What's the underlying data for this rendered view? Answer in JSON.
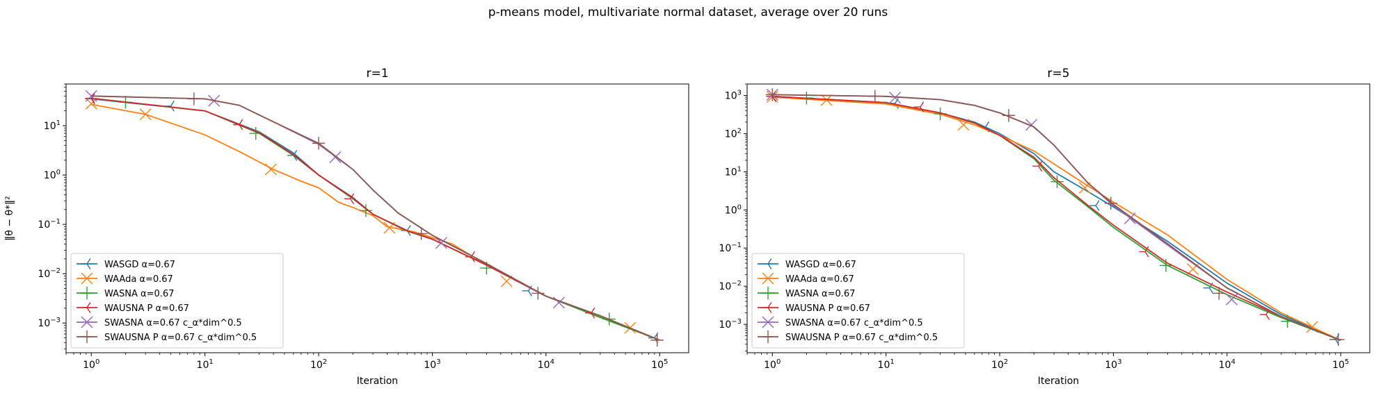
{
  "figure": {
    "suptitle": "p-means model, multivariate normal dataset, average over 20 runs"
  },
  "chart_data": [
    {
      "type": "line",
      "title": "r=1",
      "xlabel": "Iteration",
      "ylabel": "‖θ − θ*‖²",
      "xscale": "log",
      "yscale": "log",
      "xlim": [
        0.6,
        180000
      ],
      "ylim": [
        0.00025,
        70
      ],
      "x_ticks": [
        {
          "v": 1,
          "e": "0"
        },
        {
          "v": 10,
          "e": "1"
        },
        {
          "v": 100,
          "e": "2"
        },
        {
          "v": 1000,
          "e": "3"
        },
        {
          "v": 10000,
          "e": "4"
        },
        {
          "v": 100000,
          "e": "5"
        }
      ],
      "y_ticks": [
        {
          "v": 0.001,
          "e": "−3"
        },
        {
          "v": 0.01,
          "e": "−2"
        },
        {
          "v": 0.1,
          "e": "−1"
        },
        {
          "v": 1,
          "e": "0"
        },
        {
          "v": 10,
          "e": "1"
        }
      ],
      "legend_position": "lower-left",
      "grid": false,
      "series": [
        {
          "name": "WASGD α=0.67",
          "color": "#1f77b4",
          "marker": "tri_left",
          "points": [
            [
              1,
              35
            ],
            [
              10,
              20
            ],
            [
              30,
              7.5
            ],
            [
              60,
              2.8
            ],
            [
              100,
              1.0
            ],
            [
              200,
              0.35
            ],
            [
              300,
              0.16
            ],
            [
              600,
              0.075
            ],
            [
              1000,
              0.05
            ],
            [
              3000,
              0.015
            ],
            [
              10000,
              0.0035
            ],
            [
              30000,
              0.0014
            ],
            [
              100000,
              0.00045
            ]
          ],
          "markers": [
            [
              1,
              35
            ],
            [
              5,
              25
            ],
            [
              60,
              2.5
            ],
            [
              600,
              0.075
            ],
            [
              7000,
              0.0045
            ],
            [
              90000,
              0.0005
            ]
          ]
        },
        {
          "name": "WAAda α=0.67",
          "color": "#ff7f0e",
          "marker": "x",
          "points": [
            [
              1,
              27
            ],
            [
              3,
              17
            ],
            [
              10,
              6.5
            ],
            [
              20,
              3.0
            ],
            [
              40,
              1.3
            ],
            [
              70,
              0.75
            ],
            [
              100,
              0.55
            ],
            [
              150,
              0.28
            ],
            [
              200,
              0.22
            ],
            [
              300,
              0.15
            ],
            [
              400,
              0.09
            ],
            [
              700,
              0.07
            ],
            [
              1500,
              0.04
            ],
            [
              3000,
              0.015
            ],
            [
              10000,
              0.0035
            ],
            [
              30000,
              0.0013
            ],
            [
              100000,
              0.00045
            ]
          ],
          "markers": [
            [
              1,
              28
            ],
            [
              3,
              17
            ],
            [
              38,
              1.3
            ],
            [
              420,
              0.085
            ],
            [
              4500,
              0.007
            ],
            [
              55000,
              0.0008
            ]
          ]
        },
        {
          "name": "WASNA α=0.67",
          "color": "#2ca02c",
          "marker": "+",
          "points": [
            [
              1,
              36
            ],
            [
              10,
              20
            ],
            [
              30,
              7.0
            ],
            [
              60,
              2.5
            ],
            [
              100,
              1.0
            ],
            [
              200,
              0.33
            ],
            [
              300,
              0.16
            ],
            [
              600,
              0.073
            ],
            [
              1000,
              0.05
            ],
            [
              3000,
              0.015
            ],
            [
              10000,
              0.0035
            ],
            [
              30000,
              0.0013
            ],
            [
              100000,
              0.00045
            ]
          ],
          "markers": [
            [
              2,
              30
            ],
            [
              28,
              7.0
            ],
            [
              260,
              0.19
            ],
            [
              3000,
              0.013
            ],
            [
              36000,
              0.0012
            ]
          ]
        },
        {
          "name": "WAUSNA P α=0.67",
          "color": "#d62728",
          "marker": "tri_left",
          "points": [
            [
              1,
              36
            ],
            [
              10,
              20
            ],
            [
              30,
              7.2
            ],
            [
              60,
              2.6
            ],
            [
              100,
              1.0
            ],
            [
              200,
              0.34
            ],
            [
              300,
              0.16
            ],
            [
              600,
              0.074
            ],
            [
              1000,
              0.05
            ],
            [
              3000,
              0.015
            ],
            [
              10000,
              0.0035
            ],
            [
              30000,
              0.0014
            ],
            [
              100000,
              0.00045
            ]
          ],
          "markers": [
            [
              1,
              36
            ],
            [
              20,
              10.5
            ],
            [
              190,
              0.33
            ],
            [
              2200,
              0.022
            ],
            [
              25000,
              0.0016
            ]
          ]
        },
        {
          "name": "SWASNA α=0.67 c_α*dim^0.5",
          "color": "#9467bd",
          "marker": "x",
          "points": [
            [
              1,
              40
            ],
            [
              10,
              35
            ],
            [
              20,
              26
            ],
            [
              40,
              12
            ],
            [
              100,
              4.2
            ],
            [
              200,
              1.3
            ],
            [
              300,
              0.5
            ],
            [
              500,
              0.17
            ],
            [
              1000,
              0.06
            ],
            [
              3000,
              0.016
            ],
            [
              10000,
              0.0035
            ],
            [
              30000,
              0.0014
            ],
            [
              100000,
              0.00045
            ]
          ],
          "markers": [
            [
              1,
              40
            ],
            [
              12,
              32
            ],
            [
              140,
              2.3
            ],
            [
              1200,
              0.042
            ],
            [
              13000,
              0.0026
            ]
          ]
        },
        {
          "name": "SWAUSNA P α=0.67 c_α*dim^0.5",
          "color": "#8c564b",
          "marker": "+",
          "points": [
            [
              1,
              40
            ],
            [
              10,
              35
            ],
            [
              20,
              26
            ],
            [
              40,
              12
            ],
            [
              100,
              4.4
            ],
            [
              200,
              1.3
            ],
            [
              300,
              0.5
            ],
            [
              500,
              0.17
            ],
            [
              1000,
              0.06
            ],
            [
              3000,
              0.016
            ],
            [
              10000,
              0.0035
            ],
            [
              30000,
              0.0014
            ],
            [
              100000,
              0.00045
            ]
          ],
          "markers": [
            [
              8,
              35
            ],
            [
              100,
              4.4
            ],
            [
              800,
              0.065
            ],
            [
              8500,
              0.004
            ],
            [
              95000,
              0.00045
            ]
          ]
        }
      ]
    },
    {
      "type": "line",
      "title": "r=5",
      "xlabel": "Iteration",
      "ylabel": "",
      "xscale": "log",
      "yscale": "log",
      "xlim": [
        0.6,
        180000
      ],
      "ylim": [
        0.00018,
        2000
      ],
      "x_ticks": [
        {
          "v": 1,
          "e": "0"
        },
        {
          "v": 10,
          "e": "1"
        },
        {
          "v": 100,
          "e": "2"
        },
        {
          "v": 1000,
          "e": "3"
        },
        {
          "v": 10000,
          "e": "4"
        },
        {
          "v": 100000,
          "e": "5"
        }
      ],
      "y_ticks": [
        {
          "v": 0.001,
          "e": "−3"
        },
        {
          "v": 0.01,
          "e": "−2"
        },
        {
          "v": 0.1,
          "e": "−1"
        },
        {
          "v": 1,
          "e": "0"
        },
        {
          "v": 10,
          "e": "1"
        },
        {
          "v": 100,
          "e": "2"
        },
        {
          "v": 1000,
          "e": "3"
        }
      ],
      "legend_position": "lower-left",
      "grid": false,
      "series": [
        {
          "name": "WASGD α=0.67",
          "color": "#1f77b4",
          "marker": "tri_left",
          "points": [
            [
              1,
              950
            ],
            [
              10,
              650
            ],
            [
              30,
              350
            ],
            [
              60,
              200
            ],
            [
              100,
              100
            ],
            [
              200,
              30
            ],
            [
              300,
              10
            ],
            [
              600,
              3.0
            ],
            [
              1000,
              1.2
            ],
            [
              3000,
              0.15
            ],
            [
              10000,
              0.012
            ],
            [
              30000,
              0.0018
            ],
            [
              100000,
              0.00038
            ]
          ],
          "markers": [
            [
              1,
              950
            ],
            [
              12,
              620
            ],
            [
              75,
              150
            ],
            [
              700,
              1.3
            ],
            [
              7000,
              0.009
            ],
            [
              90000,
              0.0004
            ]
          ]
        },
        {
          "name": "WAAda α=0.67",
          "color": "#ff7f0e",
          "marker": "x",
          "points": [
            [
              1,
              900
            ],
            [
              10,
              600
            ],
            [
              30,
              320
            ],
            [
              60,
              170
            ],
            [
              100,
              90
            ],
            [
              200,
              35
            ],
            [
              500,
              6.0
            ],
            [
              1000,
              1.6
            ],
            [
              3000,
              0.22
            ],
            [
              5000,
              0.07
            ],
            [
              10000,
              0.015
            ],
            [
              30000,
              0.002
            ],
            [
              100000,
              0.00038
            ]
          ],
          "markers": [
            [
              1,
              920
            ],
            [
              3,
              760
            ],
            [
              48,
              170
            ],
            [
              560,
              3.8
            ],
            [
              5000,
              0.028
            ],
            [
              56000,
              0.00085
            ]
          ]
        },
        {
          "name": "WASNA α=0.67",
          "color": "#2ca02c",
          "marker": "+",
          "points": [
            [
              1,
              950
            ],
            [
              10,
              650
            ],
            [
              30,
              350
            ],
            [
              60,
              190
            ],
            [
              100,
              90
            ],
            [
              200,
              22
            ],
            [
              300,
              6.0
            ],
            [
              600,
              1.2
            ],
            [
              1000,
              0.35
            ],
            [
              3000,
              0.035
            ],
            [
              10000,
              0.006
            ],
            [
              30000,
              0.0015
            ],
            [
              100000,
              0.00038
            ]
          ],
          "markers": [
            [
              2,
              860
            ],
            [
              30,
              330
            ],
            [
              320,
              5.5
            ],
            [
              2900,
              0.035
            ],
            [
              34000,
              0.0012
            ]
          ]
        },
        {
          "name": "WAUSNA P α=0.67",
          "color": "#d62728",
          "marker": "tri_left",
          "points": [
            [
              1,
              950
            ],
            [
              10,
              650
            ],
            [
              30,
              350
            ],
            [
              60,
              190
            ],
            [
              100,
              90
            ],
            [
              200,
              24
            ],
            [
              300,
              7.0
            ],
            [
              600,
              1.3
            ],
            [
              1000,
              0.4
            ],
            [
              3000,
              0.04
            ],
            [
              10000,
              0.007
            ],
            [
              30000,
              0.0016
            ],
            [
              100000,
              0.00038
            ]
          ],
          "markers": [
            [
              1,
              950
            ],
            [
              20,
              500
            ],
            [
              220,
              14
            ],
            [
              1900,
              0.08
            ],
            [
              22000,
              0.0018
            ]
          ]
        },
        {
          "name": "SWASNA α=0.67 c_α*dim^0.5",
          "color": "#9467bd",
          "marker": "x",
          "points": [
            [
              1,
              1050
            ],
            [
              10,
              950
            ],
            [
              30,
              780
            ],
            [
              60,
              550
            ],
            [
              100,
              350
            ],
            [
              200,
              150
            ],
            [
              300,
              50
            ],
            [
              600,
              5.0
            ],
            [
              1000,
              1.3
            ],
            [
              3000,
              0.12
            ],
            [
              10000,
              0.009
            ],
            [
              30000,
              0.0016
            ],
            [
              100000,
              0.00038
            ]
          ],
          "markers": [
            [
              1,
              1050
            ],
            [
              12,
              880
            ],
            [
              190,
              170
            ],
            [
              1400,
              0.6
            ],
            [
              11000,
              0.0045
            ]
          ]
        },
        {
          "name": "SWAUSNA P α=0.67 c_α*dim^0.5",
          "color": "#8c564b",
          "marker": "+",
          "points": [
            [
              1,
              1050
            ],
            [
              10,
              950
            ],
            [
              30,
              780
            ],
            [
              60,
              550
            ],
            [
              100,
              350
            ],
            [
              200,
              150
            ],
            [
              300,
              50
            ],
            [
              600,
              5.0
            ],
            [
              1000,
              1.4
            ],
            [
              3000,
              0.13
            ],
            [
              10000,
              0.009
            ],
            [
              30000,
              0.0016
            ],
            [
              100000,
              0.00038
            ]
          ],
          "markers": [
            [
              1,
              1050
            ],
            [
              8,
              950
            ],
            [
              120,
              300
            ],
            [
              950,
              1.5
            ],
            [
              8500,
              0.0065
            ],
            [
              95000,
              0.0004
            ]
          ]
        }
      ]
    }
  ]
}
